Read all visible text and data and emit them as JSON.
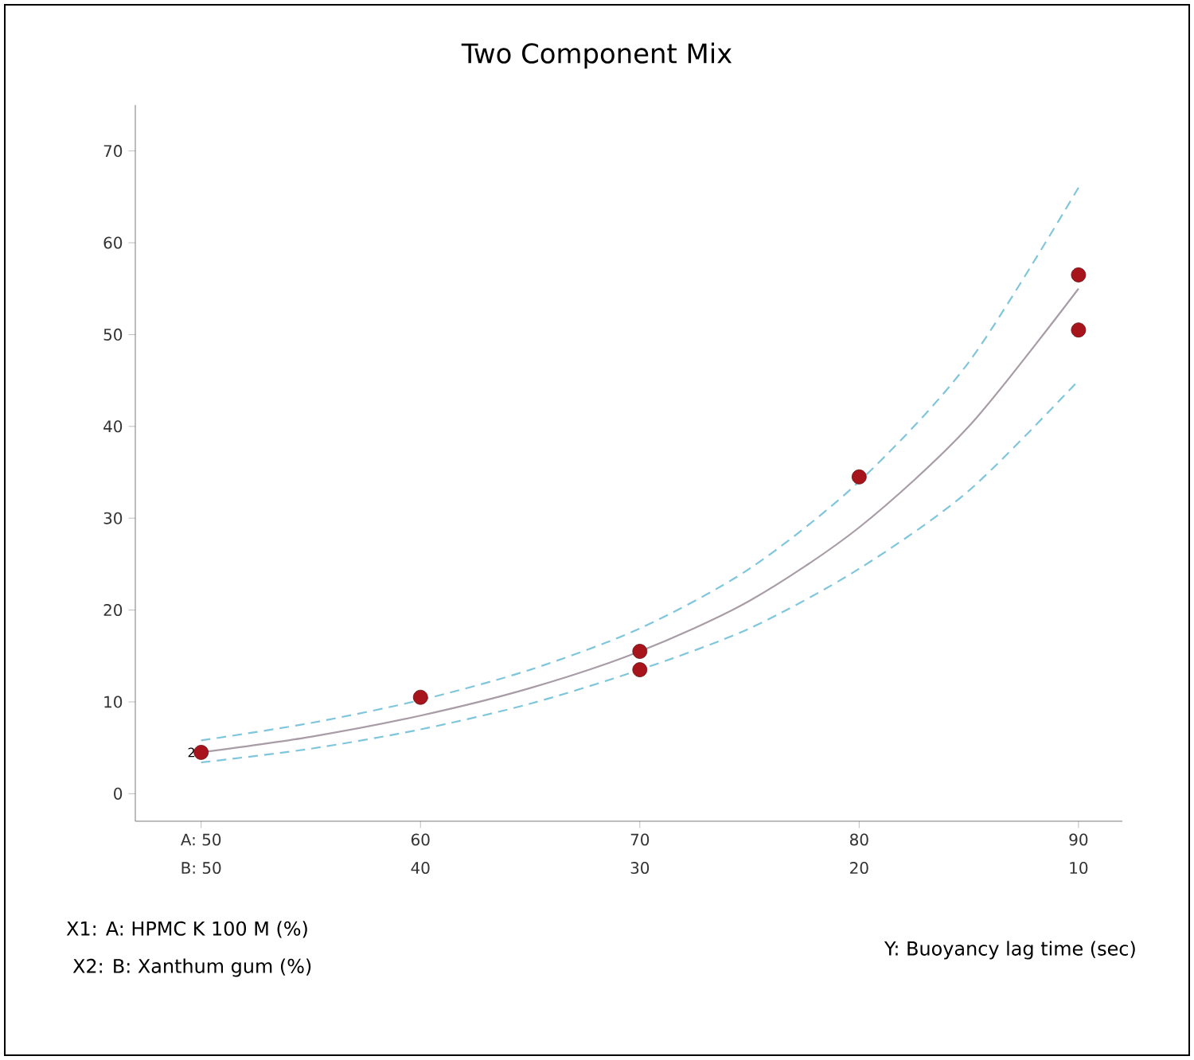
{
  "chart_data": {
    "type": "scatter",
    "title": "Two Component Mix",
    "xlabel": "X1: A: HPMC K 100 M (%)",
    "x2label": "X2: B: Xanthum gum (%)",
    "xlim": [
      47,
      92
    ],
    "xticks": [
      {
        "value": 50,
        "label": "A: 50"
      },
      60,
      70,
      80,
      90
    ],
    "x2lim": [
      53,
      8
    ],
    "x2ticks": [
      {
        "value": 50,
        "label": "B: 50"
      },
      40,
      30,
      20,
      10
    ],
    "ylim": [
      -3,
      75
    ],
    "yticks": [
      0,
      10,
      20,
      30,
      40,
      50,
      60,
      70
    ],
    "annotations": [
      {
        "text": "2",
        "x": 50,
        "y": 4.5
      },
      "Y: Buoyancy lag time (sec)"
    ],
    "series": [
      {
        "type": "line",
        "color": "#7fc6dc",
        "line_style": "dashed",
        "marker": "none",
        "x": [
          50,
          55,
          60,
          65,
          70,
          75,
          80,
          85,
          90
        ],
        "values": [
          5.8,
          7.7,
          10.2,
          13.5,
          18,
          24.5,
          34,
          47,
          66
        ]
      },
      {
        "type": "line",
        "color": "#7fc6dc",
        "line_style": "dashed",
        "marker": "none",
        "x": [
          50,
          55,
          60,
          65,
          70,
          75,
          80,
          85,
          90
        ],
        "values": [
          3.4,
          4.9,
          7,
          9.8,
          13.5,
          18,
          24.5,
          33,
          45
        ]
      },
      {
        "type": "line",
        "color": "#a89ca6",
        "line_style": "solid",
        "marker": "none",
        "x": [
          50,
          55,
          60,
          65,
          70,
          75,
          80,
          85,
          90
        ],
        "values": [
          4.5,
          6.2,
          8.5,
          11.5,
          15.5,
          21,
          29,
          40,
          55
        ]
      },
      {
        "color": "#a8141c",
        "marker": "circle",
        "x": [
          50,
          60,
          70,
          70,
          80,
          90,
          90
        ],
        "values": [
          4.5,
          10.5,
          15.5,
          13.5,
          34.5,
          56.5,
          50.5
        ]
      }
    ]
  }
}
